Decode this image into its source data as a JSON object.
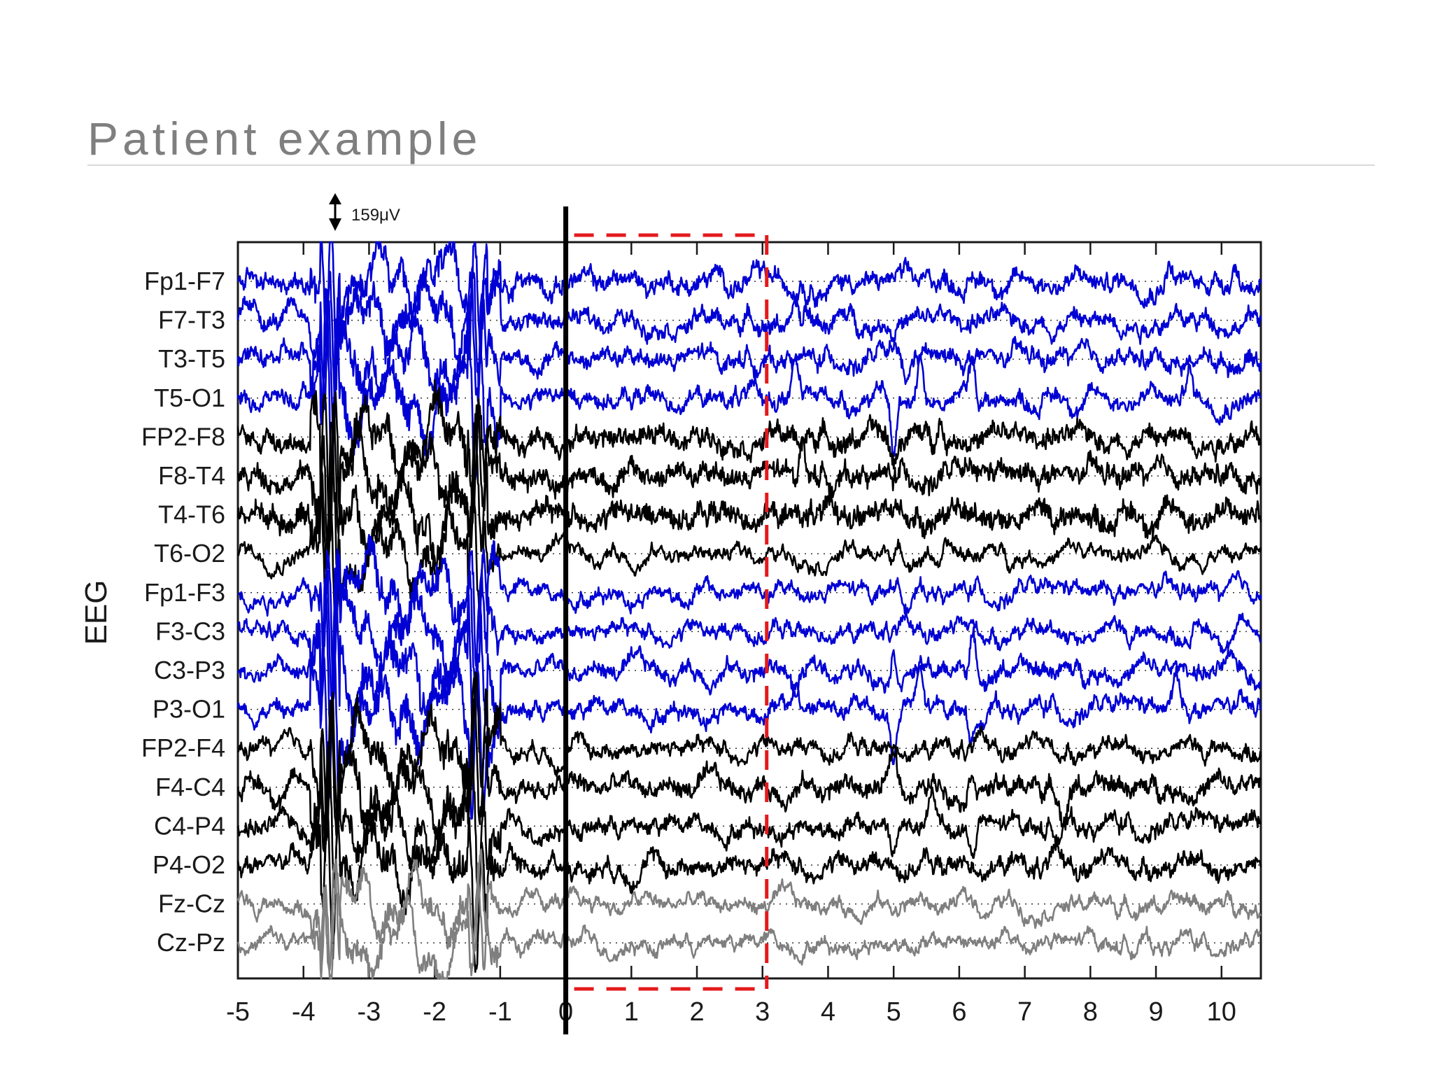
{
  "page": {
    "title": "Patient example"
  },
  "chart_data": {
    "type": "line",
    "title": "",
    "xlabel": "",
    "ylabel": "EEG",
    "xlim": [
      -5,
      10.6
    ],
    "xticks": [
      -5,
      -4,
      -3,
      -2,
      -1,
      0,
      1,
      2,
      3,
      4,
      5,
      6,
      7,
      8,
      9,
      10
    ],
    "scale_bar": "159μV",
    "onset_marker_x": 0,
    "highlight_window": {
      "x_start": 0,
      "x_end": 3,
      "color": "#e31a1c"
    },
    "colors": {
      "left": "#0000d4",
      "right": "#000000",
      "midline": "#7f7f7f"
    },
    "channels": [
      {
        "name": "Fp1-F7",
        "group": "left",
        "noise": 0.55,
        "artifact": 1.0,
        "post_events": [
          [
            3.6,
            -0.8
          ],
          [
            9.2,
            0.5
          ],
          [
            10.2,
            0.6
          ]
        ]
      },
      {
        "name": "F7-T3",
        "group": "left",
        "noise": 0.5,
        "artifact": 1.0,
        "post_events": [
          [
            3.6,
            0.7
          ],
          [
            5.0,
            -0.3
          ]
        ]
      },
      {
        "name": "T3-T5",
        "group": "left",
        "noise": 0.5,
        "artifact": 1.0,
        "post_events": [
          [
            5.2,
            -0.8
          ]
        ]
      },
      {
        "name": "T5-O1",
        "group": "left",
        "noise": 0.45,
        "artifact": 1.2,
        "post_events": [
          [
            3.5,
            1.0
          ],
          [
            5.0,
            -1.6
          ],
          [
            5.4,
            1.2
          ],
          [
            6.2,
            0.9
          ],
          [
            9.5,
            0.8
          ]
        ]
      },
      {
        "name": "FP2-F8",
        "group": "right",
        "noise": 0.7,
        "artifact": 1.0,
        "post_events": [
          [
            5.0,
            -0.7
          ],
          [
            5.7,
            0.6
          ]
        ]
      },
      {
        "name": "F8-T4",
        "group": "right",
        "noise": 0.75,
        "artifact": 1.0,
        "post_events": [
          [
            3.6,
            1.0
          ]
        ]
      },
      {
        "name": "T4-T6",
        "group": "right",
        "noise": 0.85,
        "artifact": 1.0,
        "post_events": []
      },
      {
        "name": "T6-O2",
        "group": "right",
        "noise": 0.25,
        "artifact": 0.9,
        "post_events": [
          [
            5.7,
            -0.4
          ]
        ]
      },
      {
        "name": "Fp1-F3",
        "group": "left",
        "noise": 0.35,
        "artifact": 1.0,
        "post_events": [
          [
            5.0,
            0.3
          ]
        ]
      },
      {
        "name": "F3-C3",
        "group": "left",
        "noise": 0.35,
        "artifact": 1.0,
        "post_events": []
      },
      {
        "name": "C3-P3",
        "group": "left",
        "noise": 0.45,
        "artifact": 1.2,
        "post_events": [
          [
            3.5,
            -0.7
          ],
          [
            5.0,
            0.8
          ],
          [
            6.2,
            0.9
          ]
        ]
      },
      {
        "name": "P3-O1",
        "group": "left",
        "noise": 0.45,
        "artifact": 1.2,
        "post_events": [
          [
            3.5,
            0.8
          ],
          [
            5.0,
            -1.4
          ],
          [
            5.4,
            1.0
          ],
          [
            6.2,
            -0.9
          ],
          [
            9.3,
            0.8
          ]
        ]
      },
      {
        "name": "FP2-F4",
        "group": "right",
        "noise": 0.4,
        "artifact": 1.0,
        "post_events": []
      },
      {
        "name": "F4-C4",
        "group": "right",
        "noise": 0.6,
        "artifact": 1.0,
        "post_events": [
          [
            5.0,
            1.0
          ],
          [
            6.2,
            0.8
          ],
          [
            7.6,
            -0.8
          ]
        ]
      },
      {
        "name": "C4-P4",
        "group": "right",
        "noise": 0.5,
        "artifact": 1.0,
        "post_events": [
          [
            5.0,
            -0.9
          ],
          [
            5.6,
            0.7
          ],
          [
            6.2,
            -0.9
          ]
        ]
      },
      {
        "name": "P4-O2",
        "group": "right",
        "noise": 0.55,
        "artifact": 1.0,
        "post_events": []
      },
      {
        "name": "Fz-Cz",
        "group": "midline",
        "noise": 0.25,
        "artifact": 0.8,
        "post_events": []
      },
      {
        "name": "Cz-Pz",
        "group": "midline",
        "noise": 0.25,
        "artifact": 0.8,
        "post_events": []
      }
    ]
  }
}
